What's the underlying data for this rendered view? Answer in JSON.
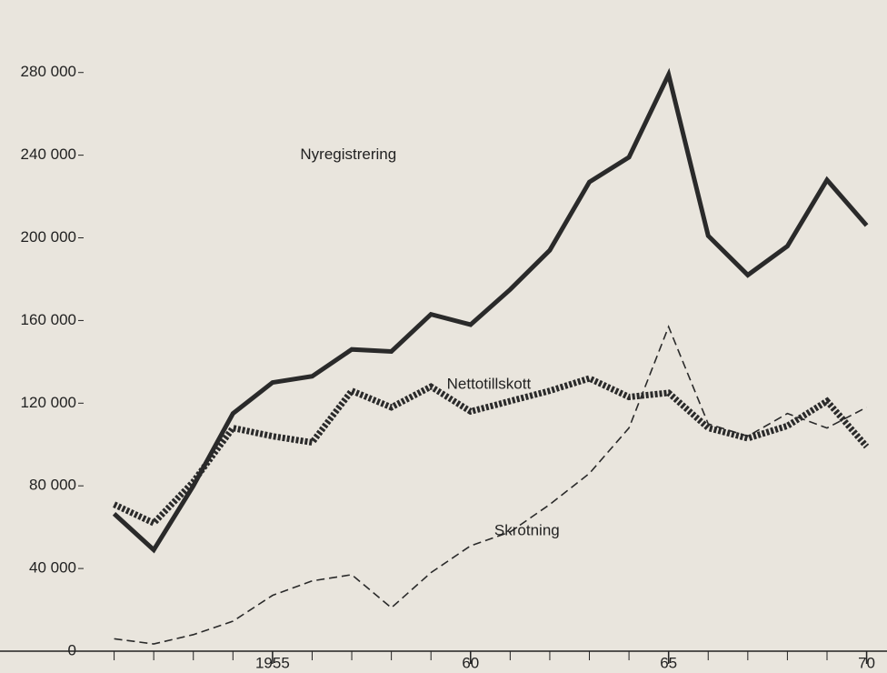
{
  "chart_data": {
    "type": "line",
    "x": [
      1951,
      1952,
      1953,
      1954,
      1955,
      1956,
      1957,
      1958,
      1959,
      1960,
      1961,
      1962,
      1963,
      1964,
      1965,
      1966,
      1967,
      1968,
      1969,
      1970
    ],
    "series": [
      {
        "name": "Nyregistrering",
        "color": "#2a2a2a",
        "style": "solid",
        "values": [
          66500,
          49000,
          80000,
          115000,
          130000,
          133000,
          146000,
          145000,
          163000,
          158000,
          175000,
          194000,
          227000,
          239000,
          279000,
          201000,
          182000,
          196000,
          228000,
          206000
        ]
      },
      {
        "name": "Nettotillskott",
        "color": "#2a2a2a",
        "style": "dotted",
        "values": [
          71000,
          62000,
          82000,
          108000,
          104000,
          101000,
          126000,
          118000,
          128000,
          116000,
          121000,
          126000,
          132000,
          123000,
          125000,
          108000,
          103000,
          109000,
          121000,
          99000
        ]
      },
      {
        "name": "Skrotning",
        "color": "#2a2a2a",
        "style": "dashed",
        "values": [
          6000,
          3500,
          8000,
          14500,
          27000,
          34000,
          37000,
          21000,
          38000,
          51000,
          57700,
          71000,
          86000,
          108000,
          157000,
          110000,
          104000,
          115000,
          108000,
          118000
        ]
      }
    ],
    "xlim": [
      1950,
      1970.4
    ],
    "xticks": [
      {
        "value": 1955,
        "label": "1955"
      },
      {
        "value": 1960,
        "label": "60"
      },
      {
        "value": 1965,
        "label": "65"
      },
      {
        "value": 1970,
        "label": "70"
      }
    ],
    "ylim": [
      0,
      290000
    ],
    "yticks": [
      0,
      {
        "value": 40000,
        "label": "40 000"
      },
      {
        "value": 80000,
        "label": "80 000"
      },
      {
        "value": 120000,
        "label": "120 000"
      },
      {
        "value": 160000,
        "label": "160 000"
      },
      {
        "value": 200000,
        "label": "200 000"
      },
      {
        "value": 240000,
        "label": "240 000"
      },
      {
        "value": 280000,
        "label": "280 000"
      }
    ]
  }
}
